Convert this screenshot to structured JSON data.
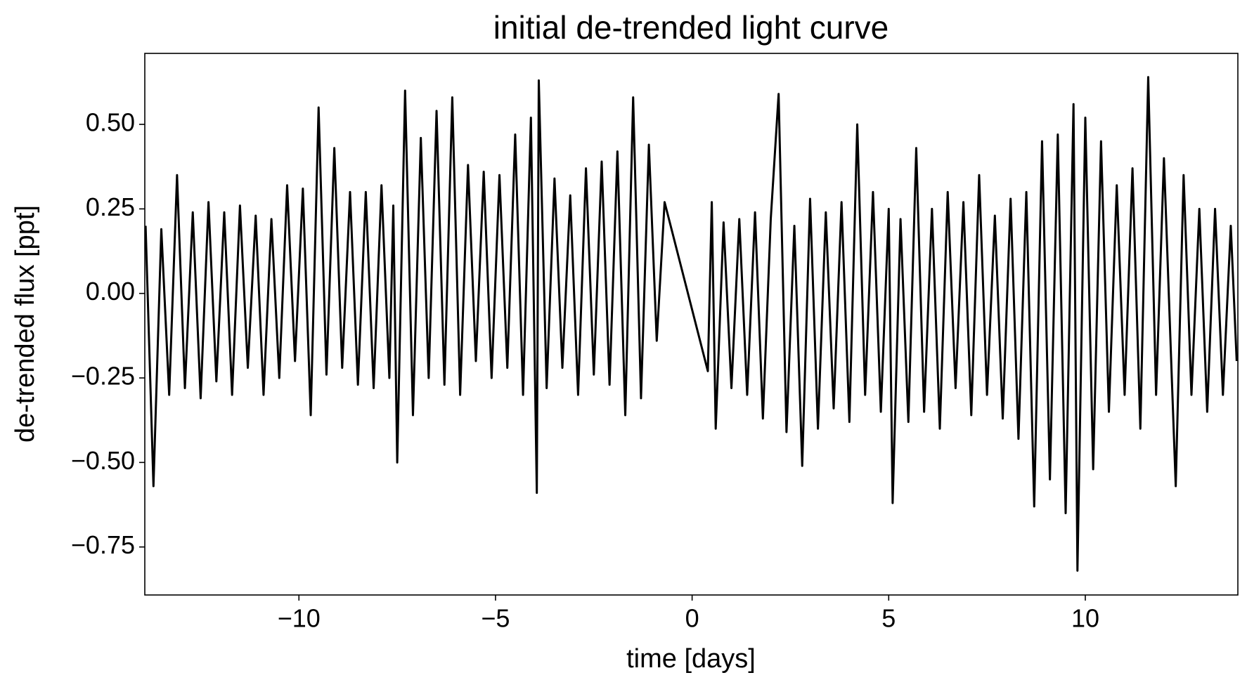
{
  "chart_data": {
    "type": "line",
    "title": "initial de-trended light curve",
    "xlabel": "time [days]",
    "ylabel": "de-trended flux [ppt]",
    "xlim": [
      -13.92,
      13.88
    ],
    "ylim": [
      -0.892,
      0.71
    ],
    "xticks": [
      {
        "value": -10,
        "label": "−10"
      },
      {
        "value": -5,
        "label": "−5"
      },
      0,
      5,
      10
    ],
    "yticks": [
      {
        "value": -0.75,
        "label": "−0.75"
      },
      {
        "value": -0.5,
        "label": "−0.50"
      },
      {
        "value": -0.25,
        "label": "−0.25"
      },
      {
        "value": 0,
        "label": "0.00"
      },
      {
        "value": 0.25,
        "label": "0.25"
      },
      {
        "value": 0.5,
        "label": "0.50"
      }
    ],
    "grid": false,
    "x": [
      -13.9,
      -13.7,
      -13.5,
      -13.3,
      -13.1,
      -12.9,
      -12.7,
      -12.5,
      -12.3,
      -12.1,
      -11.9,
      -11.7,
      -11.5,
      -11.3,
      -11.1,
      -10.9,
      -10.7,
      -10.5,
      -10.3,
      -10.1,
      -9.9,
      -9.7,
      -9.5,
      -9.3,
      -9.1,
      -8.9,
      -8.7,
      -8.5,
      -8.3,
      -8.1,
      -7.9,
      -7.7,
      -7.6,
      -7.5,
      -7.3,
      -7.1,
      -6.9,
      -6.7,
      -6.5,
      -6.3,
      -6.1,
      -5.9,
      -5.7,
      -5.5,
      -5.3,
      -5.1,
      -4.9,
      -4.7,
      -4.5,
      -4.3,
      -4.1,
      -3.95,
      -3.9,
      -3.7,
      -3.5,
      -3.3,
      -3.1,
      -2.9,
      -2.7,
      -2.5,
      -2.3,
      -2.1,
      -1.9,
      -1.7,
      -1.5,
      -1.3,
      -1.1,
      -0.9,
      -0.7,
      0.4,
      0.5,
      0.6,
      0.8,
      1.0,
      1.2,
      1.4,
      1.6,
      1.8,
      2.0,
      2.2,
      2.4,
      2.6,
      2.8,
      3.0,
      3.2,
      3.4,
      3.6,
      3.8,
      4.0,
      4.2,
      4.4,
      4.6,
      4.8,
      5.0,
      5.1,
      5.3,
      5.5,
      5.7,
      5.9,
      6.1,
      6.3,
      6.5,
      6.7,
      6.9,
      7.1,
      7.3,
      7.5,
      7.7,
      7.9,
      8.1,
      8.3,
      8.5,
      8.7,
      8.9,
      9.1,
      9.3,
      9.5,
      9.7,
      9.8,
      10.0,
      10.2,
      10.4,
      10.6,
      10.8,
      11.0,
      11.2,
      11.4,
      11.6,
      11.8,
      12.0,
      12.2,
      12.3,
      12.5,
      12.7,
      12.9,
      13.1,
      13.3,
      13.5,
      13.7,
      13.85
    ],
    "series": [
      {
        "name": "flux",
        "color": "#000000",
        "values": [
          0.2,
          -0.57,
          0.19,
          -0.3,
          0.35,
          -0.28,
          0.24,
          -0.31,
          0.27,
          -0.26,
          0.24,
          -0.3,
          0.26,
          -0.22,
          0.23,
          -0.3,
          0.22,
          -0.25,
          0.32,
          -0.2,
          0.31,
          -0.36,
          0.55,
          -0.24,
          0.43,
          -0.22,
          0.3,
          -0.27,
          0.3,
          -0.28,
          0.32,
          -0.25,
          0.26,
          -0.5,
          0.6,
          -0.36,
          0.46,
          -0.25,
          0.54,
          -0.27,
          0.58,
          -0.3,
          0.38,
          -0.2,
          0.36,
          -0.25,
          0.35,
          -0.22,
          0.47,
          -0.3,
          0.52,
          -0.59,
          0.63,
          -0.28,
          0.34,
          -0.22,
          0.29,
          -0.3,
          0.37,
          -0.24,
          0.39,
          -0.27,
          0.42,
          -0.36,
          0.58,
          -0.31,
          0.44,
          -0.14,
          0.27,
          -0.23,
          0.27,
          -0.4,
          0.21,
          -0.28,
          0.22,
          -0.3,
          0.24,
          -0.37,
          0.22,
          0.59,
          -0.41,
          0.2,
          -0.51,
          0.28,
          -0.4,
          0.24,
          -0.34,
          0.27,
          -0.38,
          0.5,
          -0.3,
          0.3,
          -0.35,
          0.25,
          -0.62,
          0.22,
          -0.38,
          0.43,
          -0.35,
          0.25,
          -0.4,
          0.3,
          -0.28,
          0.27,
          -0.36,
          0.35,
          -0.3,
          0.23,
          -0.37,
          0.28,
          -0.43,
          0.3,
          -0.63,
          0.45,
          -0.55,
          0.47,
          -0.65,
          0.56,
          -0.82,
          0.52,
          -0.52,
          0.45,
          -0.35,
          0.32,
          -0.3,
          0.37,
          -0.4,
          0.64,
          -0.3,
          0.4,
          -0.25,
          -0.57,
          0.35,
          -0.3,
          0.25,
          -0.35,
          0.25,
          -0.3,
          0.2,
          -0.2
        ]
      }
    ]
  }
}
